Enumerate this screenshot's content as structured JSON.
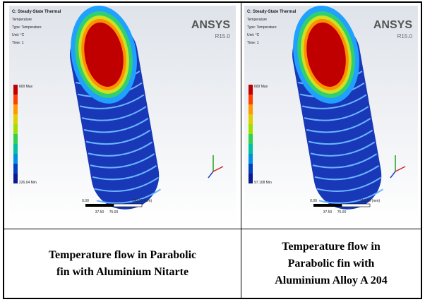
{
  "figures": [
    {
      "header": [
        "C: Steady-State Thermal",
        "Temperature",
        "Type: Temperature",
        "Unit: °C",
        "Time: 1"
      ],
      "brand": "ANSYS",
      "version": "R15.0",
      "legend_max": "600 Max",
      "legend_min": "226.04 Min",
      "scale": [
        "0.00",
        "150.00 (mm)",
        "37.50",
        "75.00"
      ],
      "caption": [
        "Temperature flow in Parabolic",
        "fin with Aluminium Nitarte"
      ]
    },
    {
      "header": [
        "C: Steady-State Thermal",
        "Temperature",
        "Type: Temperature",
        "Unit: °C",
        "Time: 1"
      ],
      "brand": "ANSYS",
      "version": "R15.0",
      "legend_max": "600 Max",
      "legend_min": "97.108 Min",
      "scale": [
        "0.00",
        "150.00 (mm)",
        "37.50",
        "75.00"
      ],
      "caption": [
        "Temperature flow in",
        "Parabolic fin with",
        "Aluminium Alloy A 204"
      ]
    }
  ]
}
